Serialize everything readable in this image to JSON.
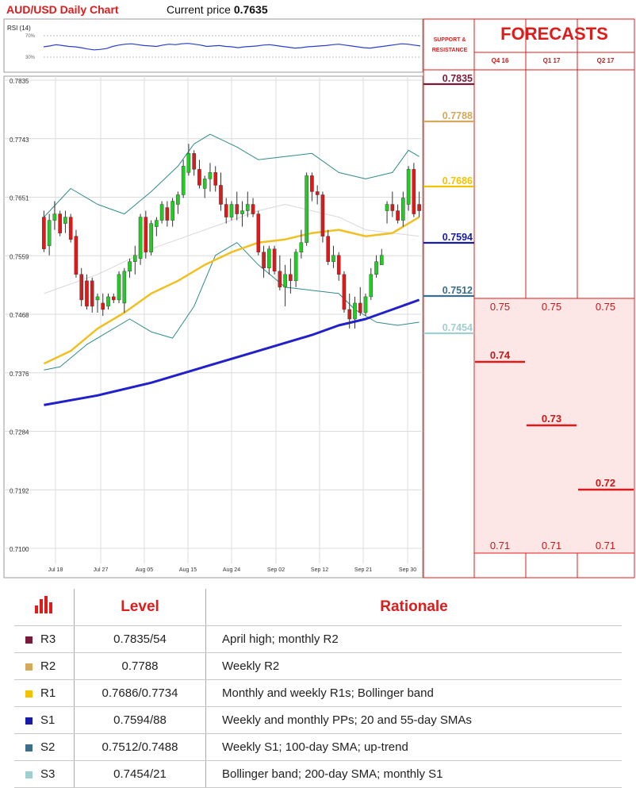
{
  "header": {
    "title": "AUD/USD Daily Chart",
    "current_label": "Current price",
    "current_value": "0.7635"
  },
  "rsi": {
    "label": "RSI (14)",
    "upper": "70%",
    "lower": "30%"
  },
  "colors": {
    "bull": "#22cc22",
    "bear": "#dd1a1a",
    "bollinger": "#2e8b8b",
    "sma_yellow": "#f0c020",
    "sma_blue": "#2020cc",
    "sma_grey": "#d8d8d8",
    "R3": "#7a1a3a",
    "R2": "#d4a95a",
    "R1": "#f2c200",
    "S1": "#1a1aaa",
    "S2": "#3a6e8a",
    "S3": "#9fcfcf",
    "forecast_fill": "#fde6e6",
    "forecast_line": "#dd1a1a"
  },
  "chart_data": {
    "type": "candlestick",
    "title": "AUD/USD Daily Chart",
    "y_ticks": [
      "0.7835",
      "0.7743",
      "0.7651",
      "0.7559",
      "0.7468",
      "0.7376",
      "0.7284",
      "0.7192",
      "0.7100"
    ],
    "ylim": [
      0.71,
      0.7835
    ],
    "x_ticks": [
      "Jul 18",
      "Jul 27",
      "Aug 05",
      "Aug 15",
      "Aug 24",
      "Sep 02",
      "Sep 12",
      "Sep 21",
      "Sep 30"
    ],
    "candles": [
      [
        0.762,
        0.763,
        0.7565,
        0.757
      ],
      [
        0.7575,
        0.7625,
        0.756,
        0.7615
      ],
      [
        0.7615,
        0.7645,
        0.76,
        0.7625
      ],
      [
        0.7625,
        0.763,
        0.759,
        0.7595
      ],
      [
        0.761,
        0.763,
        0.7595,
        0.762
      ],
      [
        0.762,
        0.7625,
        0.758,
        0.7585
      ],
      [
        0.759,
        0.76,
        0.7525,
        0.753
      ],
      [
        0.753,
        0.754,
        0.748,
        0.749
      ],
      [
        0.752,
        0.753,
        0.7475,
        0.748
      ],
      [
        0.752,
        0.7525,
        0.747,
        0.748
      ],
      [
        0.749,
        0.75,
        0.747,
        0.7495
      ],
      [
        0.7485,
        0.75,
        0.7465,
        0.7475
      ],
      [
        0.748,
        0.75,
        0.7475,
        0.7495
      ],
      [
        0.7495,
        0.75,
        0.7485,
        0.749
      ],
      [
        0.749,
        0.7535,
        0.7485,
        0.753
      ],
      [
        0.7485,
        0.754,
        0.747,
        0.7535
      ],
      [
        0.7535,
        0.7555,
        0.7525,
        0.755
      ],
      [
        0.755,
        0.7575,
        0.753,
        0.756
      ],
      [
        0.7555,
        0.7625,
        0.7545,
        0.762
      ],
      [
        0.762,
        0.763,
        0.7555,
        0.7565
      ],
      [
        0.7565,
        0.7615,
        0.756,
        0.761
      ],
      [
        0.7605,
        0.762,
        0.759,
        0.7615
      ],
      [
        0.7615,
        0.7645,
        0.761,
        0.764
      ],
      [
        0.7635,
        0.7645,
        0.7605,
        0.7615
      ],
      [
        0.7615,
        0.765,
        0.7605,
        0.7645
      ],
      [
        0.764,
        0.766,
        0.7625,
        0.7655
      ],
      [
        0.7655,
        0.771,
        0.765,
        0.77
      ],
      [
        0.769,
        0.7735,
        0.7685,
        0.772
      ],
      [
        0.772,
        0.7725,
        0.7685,
        0.7695
      ],
      [
        0.7695,
        0.771,
        0.7665,
        0.767
      ],
      [
        0.7665,
        0.7685,
        0.765,
        0.768
      ],
      [
        0.768,
        0.7705,
        0.766,
        0.769
      ],
      [
        0.769,
        0.77,
        0.766,
        0.767
      ],
      [
        0.767,
        0.769,
        0.763,
        0.764
      ],
      [
        0.764,
        0.765,
        0.761,
        0.762
      ],
      [
        0.762,
        0.7645,
        0.7615,
        0.764
      ],
      [
        0.764,
        0.766,
        0.7615,
        0.7625
      ],
      [
        0.7625,
        0.7645,
        0.7605,
        0.763
      ],
      [
        0.763,
        0.766,
        0.762,
        0.764
      ],
      [
        0.764,
        0.765,
        0.762,
        0.7625
      ],
      [
        0.7625,
        0.763,
        0.756,
        0.7565
      ],
      [
        0.7565,
        0.7575,
        0.7525,
        0.754
      ],
      [
        0.754,
        0.7575,
        0.753,
        0.757
      ],
      [
        0.757,
        0.7575,
        0.753,
        0.7535
      ],
      [
        0.7535,
        0.756,
        0.7505,
        0.751
      ],
      [
        0.751,
        0.7545,
        0.748,
        0.753
      ],
      [
        0.753,
        0.7555,
        0.75,
        0.752
      ],
      [
        0.752,
        0.757,
        0.751,
        0.7565
      ],
      [
        0.7565,
        0.76,
        0.7555,
        0.758
      ],
      [
        0.758,
        0.769,
        0.7575,
        0.7685
      ],
      [
        0.7685,
        0.769,
        0.7645,
        0.766
      ],
      [
        0.766,
        0.767,
        0.764,
        0.7655
      ],
      [
        0.7655,
        0.766,
        0.758,
        0.759
      ],
      [
        0.759,
        0.76,
        0.7545,
        0.755
      ],
      [
        0.755,
        0.7575,
        0.754,
        0.756
      ],
      [
        0.756,
        0.7565,
        0.752,
        0.753
      ],
      [
        0.753,
        0.7535,
        0.747,
        0.7475
      ],
      [
        0.7475,
        0.75,
        0.7445,
        0.746
      ],
      [
        0.746,
        0.7495,
        0.7445,
        0.7485
      ],
      [
        0.7485,
        0.751,
        0.7465,
        0.747
      ],
      [
        0.747,
        0.75,
        0.7465,
        0.7495
      ],
      [
        0.7495,
        0.754,
        0.749,
        0.753
      ],
      [
        0.753,
        0.756,
        0.7525,
        0.755
      ],
      [
        0.7545,
        0.757,
        0.7545,
        0.756
      ],
      [
        0.763,
        0.7645,
        0.761,
        0.764
      ],
      [
        0.764,
        0.766,
        0.762,
        0.763
      ],
      [
        0.763,
        0.764,
        0.761,
        0.7615
      ],
      [
        0.7615,
        0.766,
        0.7605,
        0.765
      ],
      [
        0.764,
        0.77,
        0.763,
        0.7695
      ],
      [
        0.7695,
        0.7705,
        0.762,
        0.7625
      ],
      [
        0.764,
        0.766,
        0.762,
        0.763
      ]
    ],
    "sma_yellow": [
      [
        0,
        0.739
      ],
      [
        5,
        0.741
      ],
      [
        10,
        0.7445
      ],
      [
        15,
        0.747
      ],
      [
        20,
        0.75
      ],
      [
        25,
        0.752
      ],
      [
        30,
        0.7545
      ],
      [
        35,
        0.7565
      ],
      [
        40,
        0.758
      ],
      [
        45,
        0.7585
      ],
      [
        50,
        0.7595
      ],
      [
        55,
        0.76
      ],
      [
        60,
        0.759
      ],
      [
        65,
        0.7595
      ],
      [
        70,
        0.762
      ]
    ],
    "sma_blue": [
      [
        0,
        0.7325
      ],
      [
        10,
        0.734
      ],
      [
        20,
        0.736
      ],
      [
        30,
        0.7385
      ],
      [
        40,
        0.741
      ],
      [
        50,
        0.7435
      ],
      [
        55,
        0.745
      ],
      [
        60,
        0.746
      ],
      [
        65,
        0.7475
      ],
      [
        70,
        0.749
      ]
    ],
    "sma_grey": [
      [
        0,
        0.75
      ],
      [
        10,
        0.753
      ],
      [
        20,
        0.757
      ],
      [
        30,
        0.76
      ],
      [
        40,
        0.763
      ],
      [
        45,
        0.764
      ],
      [
        50,
        0.763
      ],
      [
        55,
        0.762
      ],
      [
        60,
        0.76
      ],
      [
        65,
        0.7595
      ],
      [
        70,
        0.759
      ]
    ],
    "bb_upper": [
      [
        0,
        0.762
      ],
      [
        5,
        0.7665
      ],
      [
        10,
        0.764
      ],
      [
        15,
        0.7625
      ],
      [
        20,
        0.766
      ],
      [
        25,
        0.77
      ],
      [
        28,
        0.7735
      ],
      [
        31,
        0.775
      ],
      [
        36,
        0.773
      ],
      [
        40,
        0.771
      ],
      [
        45,
        0.7715
      ],
      [
        50,
        0.772
      ],
      [
        55,
        0.769
      ],
      [
        60,
        0.768
      ],
      [
        65,
        0.769
      ],
      [
        68,
        0.7725
      ],
      [
        70,
        0.7715
      ]
    ],
    "bb_lower": [
      [
        0,
        0.738
      ],
      [
        3,
        0.7385
      ],
      [
        8,
        0.742
      ],
      [
        12,
        0.744
      ],
      [
        16,
        0.746
      ],
      [
        20,
        0.744
      ],
      [
        24,
        0.743
      ],
      [
        28,
        0.748
      ],
      [
        32,
        0.756
      ],
      [
        36,
        0.758
      ],
      [
        40,
        0.7545
      ],
      [
        45,
        0.751
      ],
      [
        50,
        0.7505
      ],
      [
        55,
        0.75
      ],
      [
        58,
        0.7475
      ],
      [
        62,
        0.7455
      ],
      [
        66,
        0.745
      ],
      [
        70,
        0.7455
      ]
    ],
    "rsi": [
      55,
      57,
      60,
      58,
      56,
      55,
      53,
      50,
      48,
      49,
      51,
      56,
      59,
      61,
      62,
      60,
      58,
      57,
      56,
      59,
      61,
      60,
      62,
      63,
      61,
      59,
      56,
      57,
      58,
      56,
      55,
      53,
      55,
      56,
      57,
      59,
      60,
      58,
      56,
      54,
      52,
      53,
      55,
      56,
      57,
      58,
      60,
      61,
      59,
      57,
      55,
      53,
      52,
      54,
      56,
      58,
      60,
      62,
      61,
      59,
      57
    ],
    "levels": [
      {
        "key": "R3",
        "value": "0.7835",
        "num": 0.7835,
        "y": 99
      },
      {
        "key": "R2",
        "value": "0.7788",
        "num": 0.7788,
        "y": 146
      },
      {
        "key": "R1",
        "value": "0.7686",
        "num": 0.7686,
        "y": 228
      },
      {
        "key": "S1",
        "value": "0.7594",
        "num": 0.7594,
        "y": 299
      },
      {
        "key": "S2",
        "value": "0.7512",
        "num": 0.7512,
        "y": 366
      },
      {
        "key": "S3",
        "value": "0.7454",
        "num": 0.7454,
        "y": 413
      }
    ]
  },
  "panel": {
    "sr_heading": "SUPPORT & RESISTANCE",
    "forecasts_heading": "FORECASTS",
    "quarters": [
      "Q4 16",
      "Q1 17",
      "Q2 17"
    ],
    "high_values": [
      "0.75",
      "0.75",
      "0.75"
    ],
    "mid_values": [
      "0.74",
      "0.73",
      "0.72"
    ],
    "low_values": [
      "0.71",
      "0.71",
      "0.71"
    ]
  },
  "table": {
    "col_level": "Level",
    "col_rationale": "Rationale",
    "rows": [
      {
        "key": "R3",
        "level": "0.7835/54",
        "rationale": "April high; monthly R2"
      },
      {
        "key": "R2",
        "level": "0.7788",
        "rationale": "Weekly R2"
      },
      {
        "key": "R1",
        "level": "0.7686/0.7734",
        "rationale": "Monthly and weekly R1s; Bollinger band"
      },
      {
        "key": "S1",
        "level": "0.7594/88",
        "rationale": "Weekly and monthly PPs; 20 and 55-day SMAs"
      },
      {
        "key": "S2",
        "level": "0.7512/0.7488",
        "rationale": "Weekly S1; 100-day SMA; up-trend"
      },
      {
        "key": "S3",
        "level": "0.7454/21",
        "rationale": "Bollinger band; 200-day SMA; monthly S1"
      }
    ]
  }
}
